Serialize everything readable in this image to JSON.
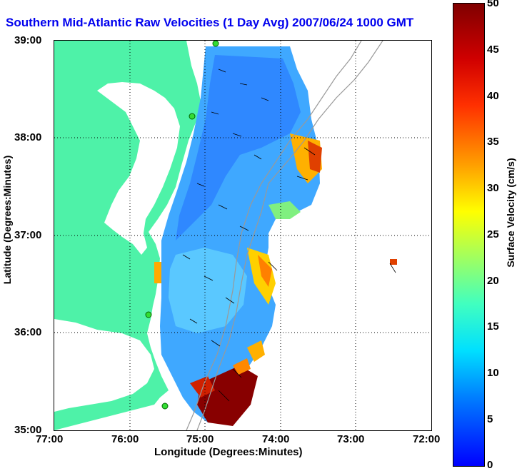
{
  "title": "Southern Mid-Atlantic Raw Velocities (1 Day Avg) 2007/06/24 1000 GMT",
  "axes": {
    "ylabel": "Latitude (Degrees:Minutes)",
    "xlabel": "Longitude (Degrees:Minutes)",
    "yticks": [
      "39:00",
      "38:00",
      "37:00",
      "36:00",
      "35:00"
    ],
    "xticks": [
      "77:00",
      "76:00",
      "75:00",
      "74:00",
      "73:00",
      "72:00"
    ]
  },
  "colorbar": {
    "label": "Surface Velocity (cm/s)",
    "ticks": [
      "50",
      "45",
      "40",
      "35",
      "30",
      "25",
      "20",
      "15",
      "10",
      "5",
      "0"
    ],
    "range": [
      0,
      50
    ]
  },
  "map": {
    "lat_range": [
      35,
      39
    ],
    "lon_range": [
      -77,
      -72
    ],
    "grid": true,
    "land_color": "#4ef2a8",
    "water_color": "#ffffff",
    "station_color": "#33dd33"
  }
}
